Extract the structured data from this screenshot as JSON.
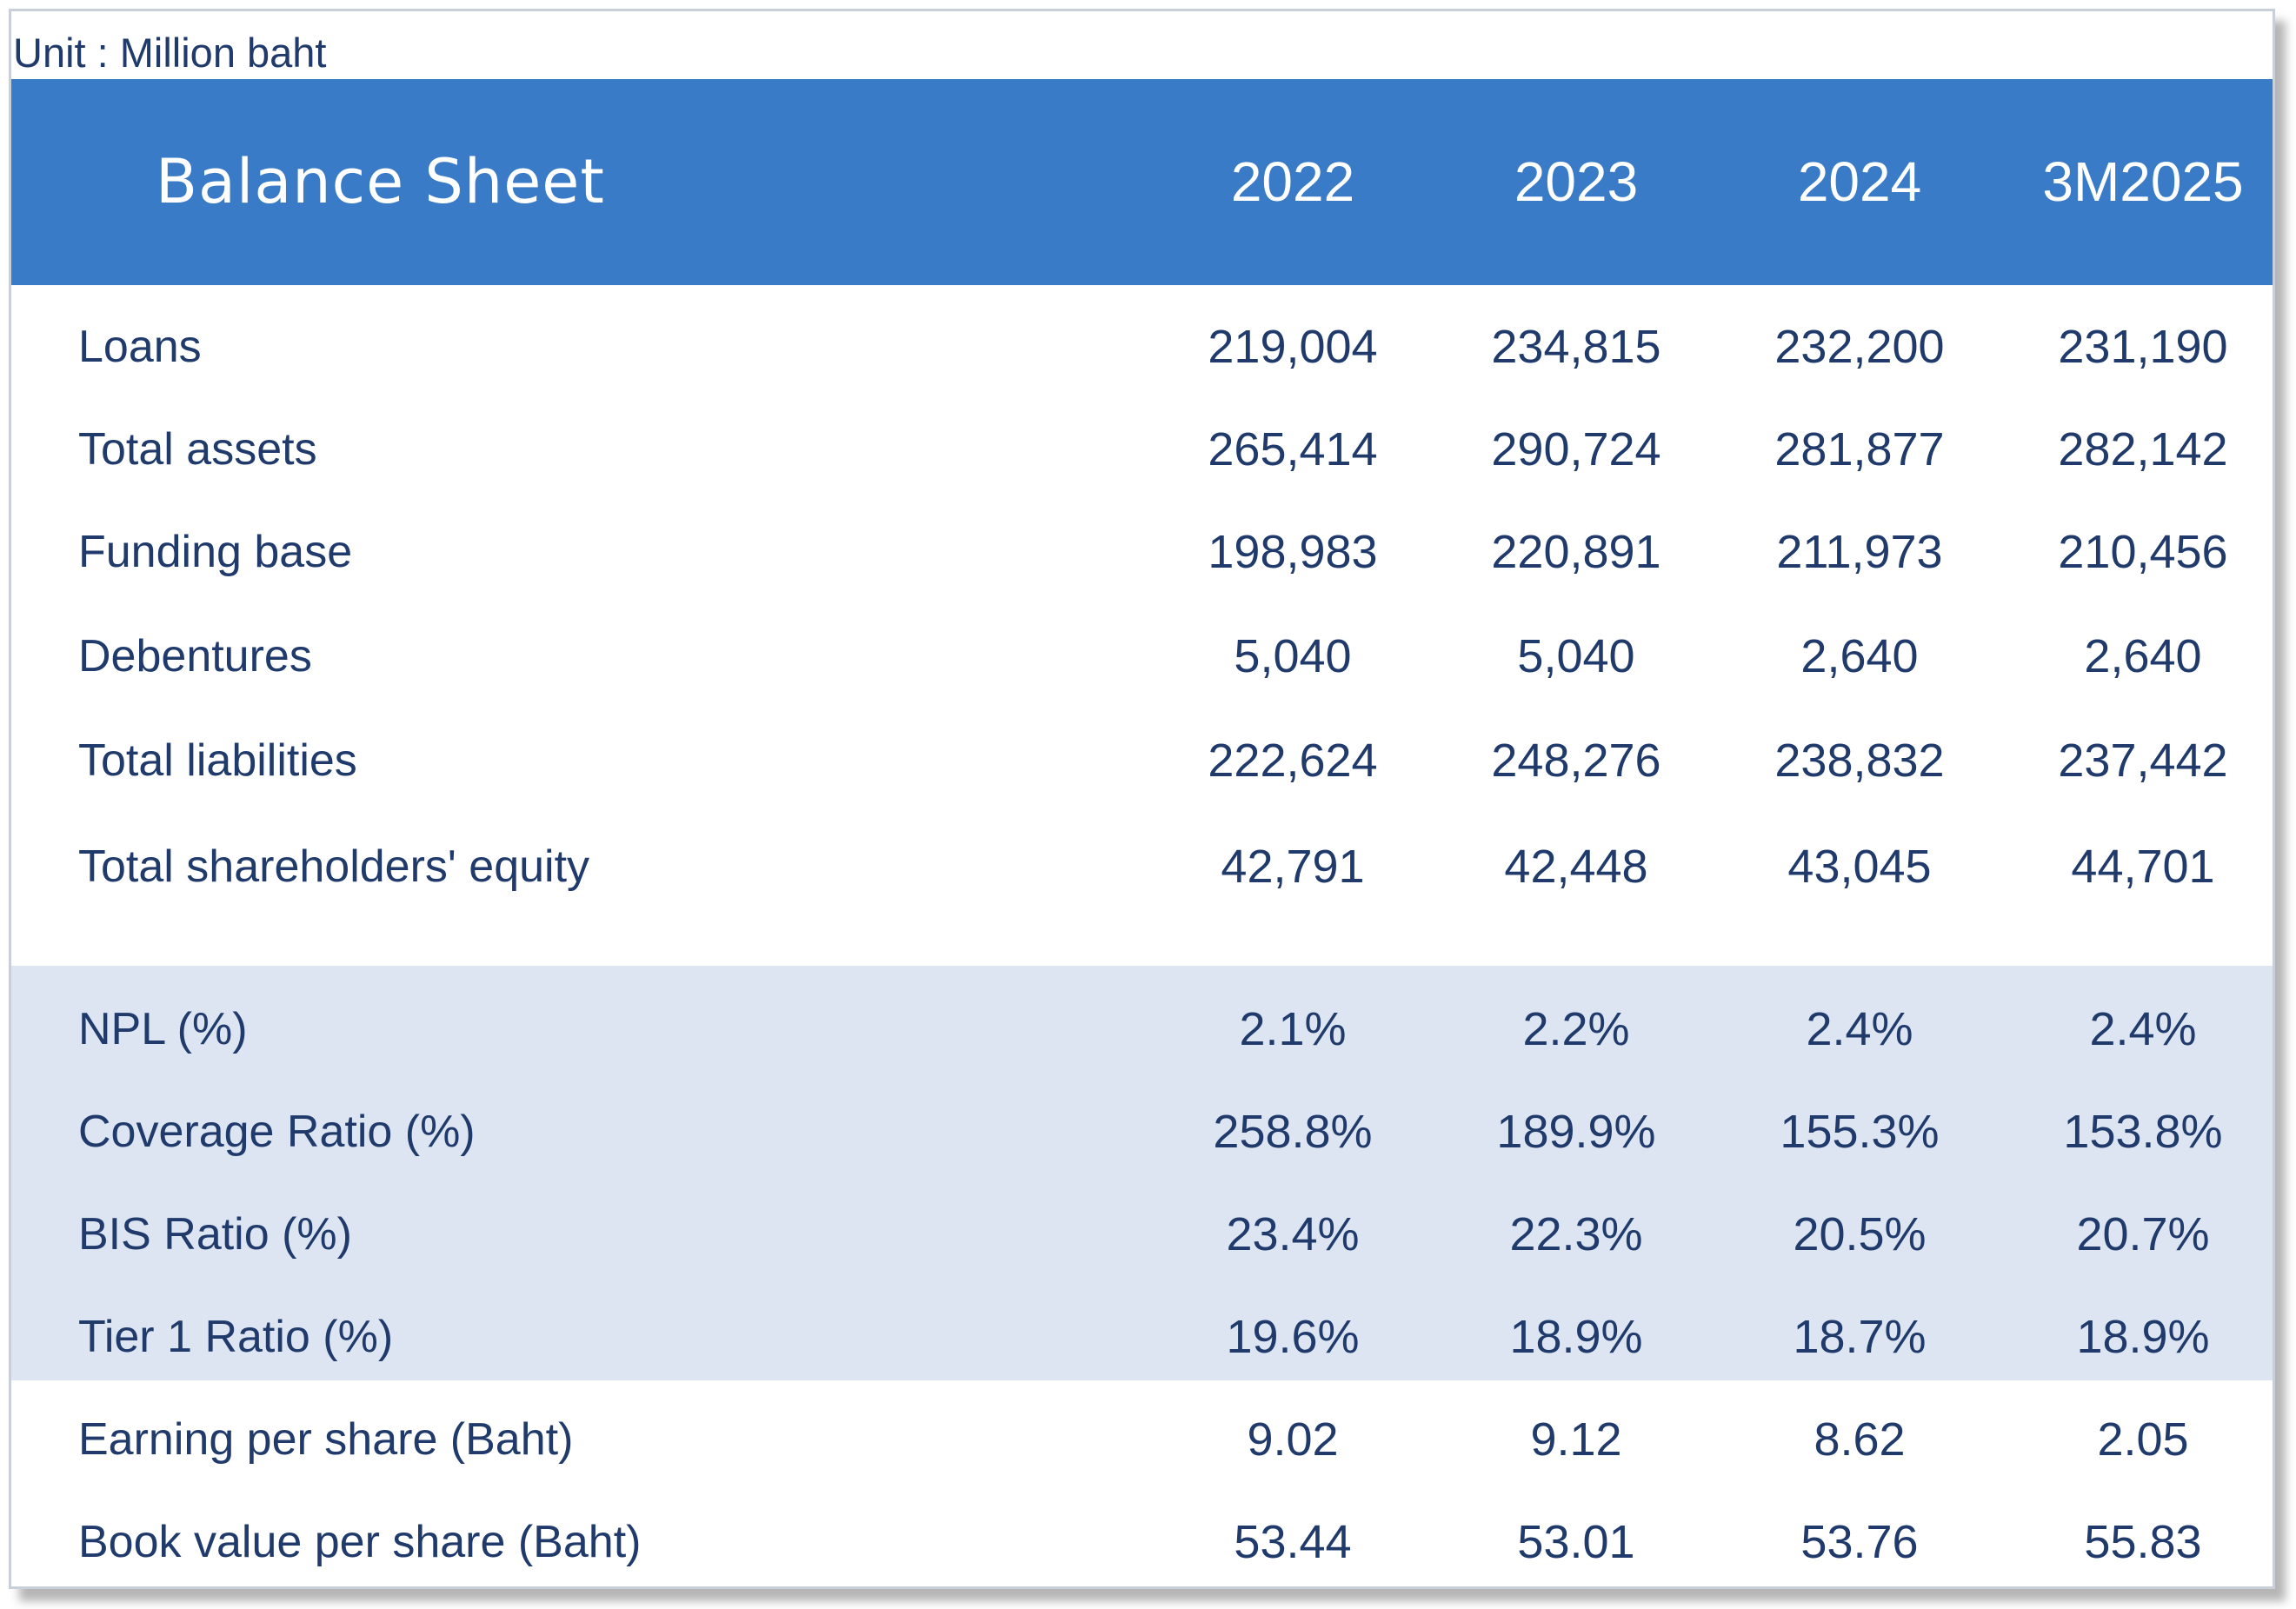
{
  "unit_label": "Unit : Million baht",
  "header": {
    "title": "Balance Sheet",
    "years": [
      "2022",
      "2023",
      "2024",
      "3M2025"
    ]
  },
  "colors": {
    "header_bg": "#3a7bc8",
    "band_bg": "#dce5f1",
    "text": "#1f3a6b"
  },
  "rows": [
    {
      "label": "Loans",
      "values": [
        "219,004",
        "234,815",
        "232,200",
        "231,190"
      ]
    },
    {
      "label": "Total assets",
      "values": [
        "265,414",
        "290,724",
        "281,877",
        "282,142"
      ]
    },
    {
      "label": "Funding base",
      "values": [
        "198,983",
        "220,891",
        "211,973",
        "210,456"
      ]
    },
    {
      "label": "Debentures",
      "values": [
        "5,040",
        "5,040",
        "2,640",
        "2,640"
      ]
    },
    {
      "label": "Total liabilities",
      "values": [
        "222,624",
        "248,276",
        "238,832",
        "237,442"
      ]
    },
    {
      "label": "Total shareholders' equity",
      "values": [
        "42,791",
        "42,448",
        "43,045",
        "44,701"
      ]
    },
    {
      "label": "NPL (%)",
      "values": [
        "2.1%",
        "2.2%",
        "2.4%",
        "2.4%"
      ]
    },
    {
      "label": "Coverage Ratio (%)",
      "values": [
        "258.8%",
        "189.9%",
        "155.3%",
        "153.8%"
      ]
    },
    {
      "label": "BIS Ratio (%)",
      "values": [
        "23.4%",
        "22.3%",
        "20.5%",
        "20.7%"
      ]
    },
    {
      "label": "Tier 1 Ratio (%)",
      "values": [
        "19.6%",
        "18.9%",
        "18.7%",
        "18.9%"
      ]
    },
    {
      "label": "Earning per share (Baht)",
      "values": [
        "9.02",
        "9.12",
        "8.62",
        "2.05"
      ]
    },
    {
      "label": "Book value per share (Baht)",
      "values": [
        "53.44",
        "53.01",
        "53.76",
        "55.83"
      ]
    }
  ]
}
